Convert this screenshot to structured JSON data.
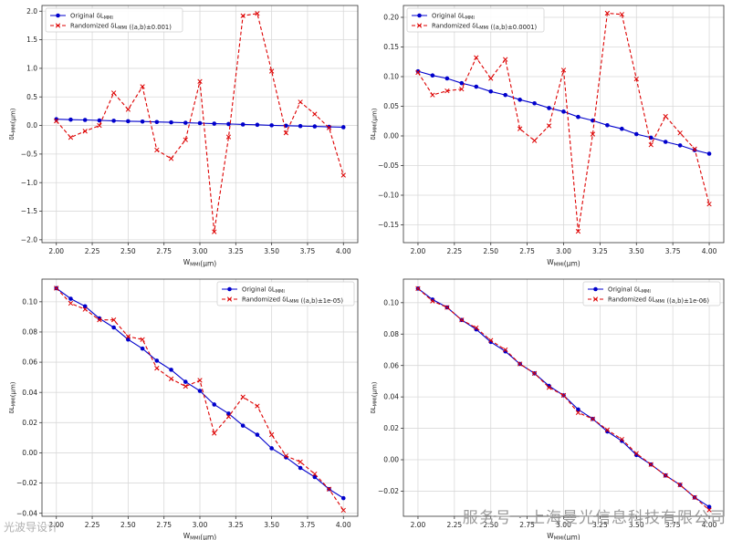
{
  "chart_data": [
    {
      "type": "line",
      "panel": "top-left",
      "xlabel": "W_MMI(μm)",
      "ylabel": "δL_MMI(μm)",
      "xlim": [
        1.9,
        4.1
      ],
      "ylim": [
        -2.05,
        2.1
      ],
      "xticks": [
        "2.00",
        "2.25",
        "2.50",
        "2.75",
        "3.00",
        "3.25",
        "3.50",
        "3.75",
        "4.00"
      ],
      "xtick_values": [
        2.0,
        2.25,
        2.5,
        2.75,
        3.0,
        3.25,
        3.5,
        3.75,
        4.0
      ],
      "yticks": [
        "2.0",
        "1.5",
        "1.0",
        "0.5",
        "0.0",
        "−0.5",
        "−1.0",
        "−1.5",
        "−2.0"
      ],
      "ytick_values": [
        2.0,
        1.5,
        1.0,
        0.5,
        0.0,
        -0.5,
        -1.0,
        -1.5,
        -2.0
      ],
      "legend_position": "top-left",
      "legend": [
        "Original δL_MMI",
        "Randomized δL_MMI ((a,b)±0.001)"
      ],
      "x": [
        2.0,
        2.1,
        2.2,
        2.3,
        2.4,
        2.5,
        2.6,
        2.7,
        2.8,
        2.9,
        3.0,
        3.1,
        3.2,
        3.3,
        3.4,
        3.5,
        3.6,
        3.7,
        3.8,
        3.9,
        4.0
      ],
      "series": [
        {
          "name": "Original δL_MMI",
          "color": "#0000cc",
          "style": "solid",
          "marker": "o",
          "values": [
            0.109,
            0.102,
            0.097,
            0.089,
            0.083,
            0.075,
            0.069,
            0.061,
            0.055,
            0.047,
            0.041,
            0.032,
            0.026,
            0.018,
            0.012,
            0.003,
            -0.003,
            -0.01,
            -0.016,
            -0.024,
            -0.03
          ]
        },
        {
          "name": "Randomized δL_MMI ((a,b)±0.001)",
          "color": "#dd0000",
          "style": "dashed",
          "marker": "x",
          "values": [
            0.08,
            -0.21,
            -0.1,
            0.0,
            0.57,
            0.28,
            0.68,
            -0.43,
            -0.58,
            -0.25,
            0.77,
            -1.86,
            -0.2,
            1.92,
            1.96,
            0.95,
            -0.13,
            0.41,
            0.2,
            -0.04,
            -0.87
          ]
        }
      ]
    },
    {
      "type": "line",
      "panel": "top-right",
      "xlabel": "W_MMI(μm)",
      "ylabel": "δL_MMI(μm)",
      "xlim": [
        1.9,
        4.1
      ],
      "ylim": [
        -0.18,
        0.22
      ],
      "xticks": [
        "2.00",
        "2.25",
        "2.50",
        "2.75",
        "3.00",
        "3.25",
        "3.50",
        "3.75",
        "4.00"
      ],
      "xtick_values": [
        2.0,
        2.25,
        2.5,
        2.75,
        3.0,
        3.25,
        3.5,
        3.75,
        4.0
      ],
      "yticks": [
        "0.20",
        "0.15",
        "0.10",
        "0.05",
        "0.00",
        "−0.05",
        "−0.10",
        "−0.15"
      ],
      "ytick_values": [
        0.2,
        0.15,
        0.1,
        0.05,
        0.0,
        -0.05,
        -0.1,
        -0.15
      ],
      "legend_position": "top-left",
      "legend": [
        "Original δL_MMI",
        "Randomized δL_MMI ((a,b)±0.0001)"
      ],
      "x": [
        2.0,
        2.1,
        2.2,
        2.3,
        2.4,
        2.5,
        2.6,
        2.7,
        2.8,
        2.9,
        3.0,
        3.1,
        3.2,
        3.3,
        3.4,
        3.5,
        3.6,
        3.7,
        3.8,
        3.9,
        4.0
      ],
      "series": [
        {
          "name": "Original δL_MMI",
          "color": "#0000cc",
          "style": "solid",
          "marker": "o",
          "values": [
            0.109,
            0.102,
            0.097,
            0.089,
            0.083,
            0.075,
            0.069,
            0.061,
            0.055,
            0.047,
            0.041,
            0.032,
            0.026,
            0.018,
            0.012,
            0.003,
            -0.003,
            -0.01,
            -0.016,
            -0.024,
            -0.03
          ]
        },
        {
          "name": "Randomized δL_MMI ((a,b)±0.0001)",
          "color": "#dd0000",
          "style": "dashed",
          "marker": "x",
          "values": [
            0.107,
            0.069,
            0.076,
            0.079,
            0.132,
            0.097,
            0.129,
            0.012,
            -0.008,
            0.017,
            0.111,
            -0.161,
            0.003,
            0.207,
            0.205,
            0.096,
            -0.015,
            0.033,
            0.005,
            -0.022,
            -0.115
          ]
        }
      ]
    },
    {
      "type": "line",
      "panel": "bottom-left",
      "xlabel": "W_MMI(μm)",
      "ylabel": "δL_MMI(μm)",
      "xlim": [
        1.9,
        4.1
      ],
      "ylim": [
        -0.042,
        0.115
      ],
      "xticks": [
        "2.00",
        "2.25",
        "2.50",
        "2.75",
        "3.00",
        "3.25",
        "3.50",
        "3.75",
        "4.00"
      ],
      "xtick_values": [
        2.0,
        2.25,
        2.5,
        2.75,
        3.0,
        3.25,
        3.5,
        3.75,
        4.0
      ],
      "yticks": [
        "0.10",
        "0.08",
        "0.06",
        "0.04",
        "0.02",
        "0.00",
        "−0.02",
        "−0.04"
      ],
      "ytick_values": [
        0.1,
        0.08,
        0.06,
        0.04,
        0.02,
        0.0,
        -0.02,
        -0.04
      ],
      "legend_position": "top-right",
      "legend": [
        "Original δL_MMI",
        "Randomized δL_MMI ((a,b)±1e-05)"
      ],
      "x": [
        2.0,
        2.1,
        2.2,
        2.3,
        2.4,
        2.5,
        2.6,
        2.7,
        2.8,
        2.9,
        3.0,
        3.1,
        3.2,
        3.3,
        3.4,
        3.5,
        3.6,
        3.7,
        3.8,
        3.9,
        4.0
      ],
      "series": [
        {
          "name": "Original δL_MMI",
          "color": "#0000cc",
          "style": "solid",
          "marker": "o",
          "values": [
            0.109,
            0.102,
            0.097,
            0.089,
            0.083,
            0.075,
            0.069,
            0.061,
            0.055,
            0.047,
            0.041,
            0.032,
            0.026,
            0.018,
            0.012,
            0.003,
            -0.003,
            -0.01,
            -0.016,
            -0.024,
            -0.03
          ]
        },
        {
          "name": "Randomized δL_MMI ((a,b)±1e-05)",
          "color": "#dd0000",
          "style": "dashed",
          "marker": "x",
          "values": [
            0.109,
            0.099,
            0.095,
            0.088,
            0.088,
            0.077,
            0.075,
            0.056,
            0.049,
            0.044,
            0.048,
            0.013,
            0.024,
            0.037,
            0.031,
            0.012,
            -0.002,
            -0.006,
            -0.014,
            -0.024,
            -0.038
          ]
        }
      ]
    },
    {
      "type": "line",
      "panel": "bottom-right",
      "xlabel": "W_MMI(μm)",
      "ylabel": "δL_MMI(μm)",
      "xlim": [
        1.9,
        4.1
      ],
      "ylim": [
        -0.036,
        0.115
      ],
      "xticks": [
        "2.00",
        "2.25",
        "2.50",
        "2.75",
        "3.00",
        "3.25",
        "3.50",
        "3.75",
        "4.00"
      ],
      "xtick_values": [
        2.0,
        2.25,
        2.5,
        2.75,
        3.0,
        3.25,
        3.5,
        3.75,
        4.0
      ],
      "yticks": [
        "0.10",
        "0.08",
        "0.06",
        "0.04",
        "0.02",
        "0.00",
        "−0.02"
      ],
      "ytick_values": [
        0.1,
        0.08,
        0.06,
        0.04,
        0.02,
        0.0,
        -0.02
      ],
      "legend_position": "top-right",
      "legend": [
        "Original δL_MMI",
        "Randomized δL_MMI ((a,b)±1e-06)"
      ],
      "x": [
        2.0,
        2.1,
        2.2,
        2.3,
        2.4,
        2.5,
        2.6,
        2.7,
        2.8,
        2.9,
        3.0,
        3.1,
        3.2,
        3.3,
        3.4,
        3.5,
        3.6,
        3.7,
        3.8,
        3.9,
        4.0
      ],
      "series": [
        {
          "name": "Original δL_MMI",
          "color": "#0000cc",
          "style": "solid",
          "marker": "o",
          "values": [
            0.109,
            0.102,
            0.097,
            0.089,
            0.083,
            0.075,
            0.069,
            0.061,
            0.055,
            0.047,
            0.041,
            0.032,
            0.026,
            0.018,
            0.012,
            0.003,
            -0.003,
            -0.01,
            -0.016,
            -0.024,
            -0.03
          ]
        },
        {
          "name": "Randomized δL_MMI ((a,b)±1e-06)",
          "color": "#dd0000",
          "style": "dashed",
          "marker": "x",
          "values": [
            0.109,
            0.101,
            0.097,
            0.089,
            0.084,
            0.076,
            0.07,
            0.061,
            0.055,
            0.046,
            0.041,
            0.03,
            0.026,
            0.019,
            0.013,
            0.004,
            -0.003,
            -0.01,
            -0.016,
            -0.024,
            -0.032
          ]
        }
      ]
    }
  ],
  "watermarks": {
    "right": "服务号 · 上海曼光信息科技有限公司",
    "left": "光波导设计"
  }
}
